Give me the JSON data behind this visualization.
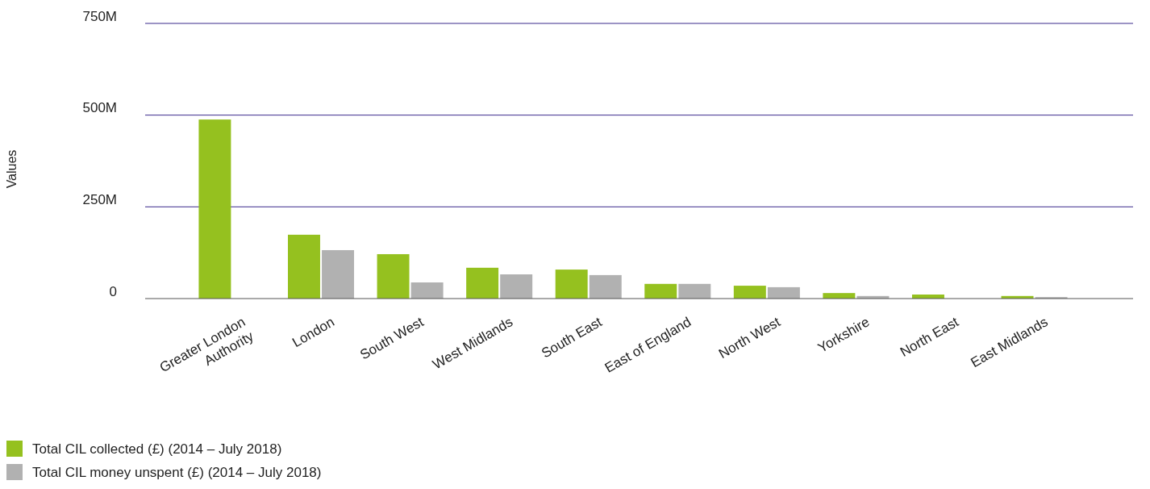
{
  "chart_data": {
    "type": "bar",
    "ylabel": "Values",
    "categories": [
      "Greater London Authority",
      "London",
      "South West",
      "West Midlands",
      "South East",
      "East of England",
      "North West",
      "Yorkshire",
      "North East",
      "East Midlands"
    ],
    "series": [
      {
        "name": "Total CIL collected (£) (2014 – July 2018)",
        "color": "#95c11f",
        "values": [
          488000000,
          174000000,
          121000000,
          84000000,
          79000000,
          40000000,
          35000000,
          15000000,
          11000000,
          7000000
        ]
      },
      {
        "name": "Total CIL money unspent (£) (2014 – July 2018)",
        "color": "#b1b1b1",
        "values": [
          null,
          132000000,
          44000000,
          66000000,
          64000000,
          40000000,
          31000000,
          7000000,
          0,
          4000000
        ]
      }
    ],
    "ylim": [
      0,
      750000000
    ],
    "yticks": [
      {
        "value": 0,
        "label": "0"
      },
      {
        "value": 250000000,
        "label": "250M"
      },
      {
        "value": 500000000,
        "label": "500M"
      },
      {
        "value": 750000000,
        "label": "750M"
      }
    ],
    "grid": "y",
    "legend": "bottom"
  }
}
